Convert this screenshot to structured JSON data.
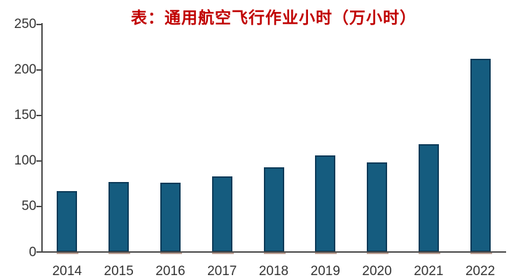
{
  "title": "表：通用航空飞行作业小时（万小时）",
  "colors": {
    "title": "#C00000",
    "bar_fill": "#155C7F",
    "bar_border": "#0C3B59",
    "bar_shadow": "#B08E80",
    "axis": "#4A4A4A",
    "tick_label": "#343434",
    "background": "#FFFFFF"
  },
  "chart_data": {
    "type": "bar",
    "title": "表：通用航空飞行作业小时（万小时）",
    "categories": [
      "2014",
      "2015",
      "2016",
      "2017",
      "2018",
      "2019",
      "2020",
      "2021",
      "2022"
    ],
    "values": [
      67,
      77,
      76,
      83,
      93,
      106,
      98,
      118,
      212
    ],
    "series": [
      {
        "name": "通用航空飞行作业小时",
        "values": [
          67,
          77,
          76,
          83,
          93,
          106,
          98,
          118,
          212
        ]
      }
    ],
    "xlabel": "",
    "ylabel": "",
    "ylim": [
      0,
      250
    ],
    "yticks": [
      0,
      50,
      100,
      150,
      200,
      250
    ],
    "grid": false,
    "legend_position": "none"
  }
}
